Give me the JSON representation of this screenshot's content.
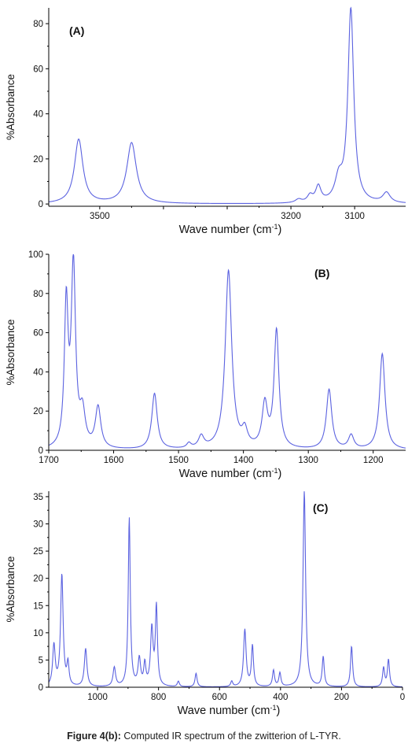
{
  "caption": {
    "label": "Figure 4(b):",
    "text": " Computed IR spectrum of the zwitterion of L-TYR."
  },
  "colors": {
    "line": "#5b62e0",
    "axis": "#000000"
  },
  "chart_data": [
    {
      "type": "line",
      "panel_label": "(A)",
      "xlabel": "Wave number (cm",
      "xlabel_sup": "-1",
      "xlabel_end": ")",
      "ylabel": "%Absorbance",
      "xlim": [
        3580,
        3020
      ],
      "ylim": [
        -1,
        87
      ],
      "xticks": [
        3500,
        3400,
        3300,
        3200,
        3100
      ],
      "xtick_labels": [
        "3500",
        "",
        "",
        "3200",
        "3100"
      ],
      "yticks": [
        0,
        20,
        40,
        60,
        80
      ],
      "peaks": [
        [
          3533,
          28.5,
          8
        ],
        [
          3450,
          27,
          9
        ],
        [
          3188,
          1.5,
          6
        ],
        [
          3170,
          3,
          5
        ],
        [
          3157,
          7,
          5
        ],
        [
          3125,
          9.5,
          7
        ],
        [
          3106,
          86,
          5.5
        ],
        [
          3050,
          4.5,
          7
        ]
      ]
    },
    {
      "type": "line",
      "panel_label": "(B)",
      "xlabel": "Wave number (cm",
      "xlabel_sup": "-1",
      "xlabel_end": ")",
      "ylabel": "%Absorbance",
      "xlim": [
        1700,
        1150
      ],
      "ylim": [
        0,
        100
      ],
      "xticks": [
        1700,
        1600,
        1500,
        1400,
        1300,
        1200
      ],
      "xtick_labels": [
        "1700",
        "1600",
        "1500",
        "1400",
        "1300",
        "1200"
      ],
      "yticks": [
        0,
        20,
        40,
        60,
        80,
        100
      ],
      "peaks": [
        [
          1673,
          72,
          3.5
        ],
        [
          1662,
          92,
          4
        ],
        [
          1648,
          17,
          5
        ],
        [
          1624,
          21,
          5
        ],
        [
          1537,
          28.5,
          5
        ],
        [
          1484,
          2.5,
          4
        ],
        [
          1465,
          6,
          5
        ],
        [
          1423,
          91,
          6
        ],
        [
          1398,
          8,
          5
        ],
        [
          1367,
          22,
          5
        ],
        [
          1349,
          60,
          4.5
        ],
        [
          1268,
          30.5,
          5
        ],
        [
          1234,
          7,
          5
        ],
        [
          1186,
          49,
          5
        ]
      ]
    },
    {
      "type": "line",
      "panel_label": "(C)",
      "xlabel": "Wave number (cm",
      "xlabel_sup": "-1",
      "xlabel_end": ")",
      "ylabel": "%Absorbance",
      "xlim": [
        1160,
        0
      ],
      "ylim": [
        0,
        36
      ],
      "xticks": [
        1000,
        800,
        600,
        400,
        200,
        0
      ],
      "xtick_labels": [
        "1000",
        "800",
        "600",
        "400",
        "200",
        "0"
      ],
      "yticks": [
        0,
        5,
        10,
        15,
        20,
        25,
        30,
        35
      ],
      "peaks": [
        [
          1143,
          7.5,
          5
        ],
        [
          1117,
          20.5,
          5
        ],
        [
          1097,
          4,
          4
        ],
        [
          1039,
          7,
          5
        ],
        [
          945,
          3.5,
          5
        ],
        [
          896,
          31,
          4
        ],
        [
          863,
          5,
          5
        ],
        [
          845,
          4,
          4
        ],
        [
          822,
          10.5,
          5
        ],
        [
          807,
          14.5,
          4
        ],
        [
          735,
          1,
          4
        ],
        [
          677,
          2.5,
          4
        ],
        [
          560,
          1,
          4
        ],
        [
          517,
          10.5,
          5
        ],
        [
          492,
          7.5,
          4
        ],
        [
          423,
          3,
          4
        ],
        [
          402,
          2.5,
          4
        ],
        [
          322,
          36,
          5
        ],
        [
          260,
          5.5,
          4
        ],
        [
          167,
          7.5,
          4
        ],
        [
          62,
          3.5,
          4
        ],
        [
          46,
          5,
          4
        ]
      ]
    }
  ]
}
